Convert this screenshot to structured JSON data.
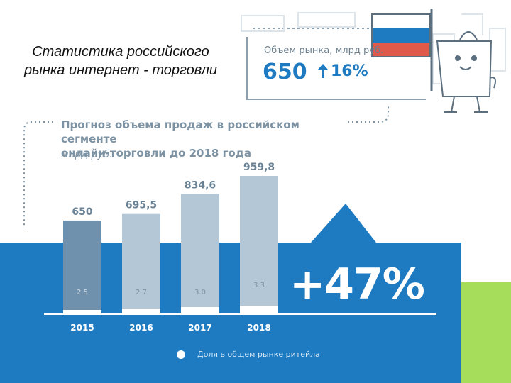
{
  "slide": {
    "title_line1": "Статистика российского",
    "title_line2": "рынка интернет - торговли"
  },
  "market_box": {
    "label": "Объем рынка, млрд руб.",
    "value": "650",
    "growth": "16%"
  },
  "chart_data": {
    "type": "bar",
    "title": "Прогноз объема продаж в российском сегменте онлайн-торговли до 2018 года",
    "title_line1": "Прогноз объема продаж в российском сегменте",
    "title_line2": "онлайн-торговли до 2018 года",
    "units": "млрд руб.",
    "categories": [
      "2015",
      "2016",
      "2017",
      "2018"
    ],
    "values": [
      650,
      695.5,
      834.6,
      959.8
    ],
    "value_labels": [
      "650",
      "695,5",
      "834,6",
      "959,8"
    ],
    "share_labels": [
      "2.5",
      "2.7",
      "3.0",
      "3.3"
    ],
    "ylim": [
      0,
      1000
    ],
    "growth_label": "+47%",
    "legend_text": "Доля в общем рынке ритейла"
  },
  "colors": {
    "blue_band": "#1e7bc2",
    "bar_dark": "#6f91ad",
    "bar_light": "#b3c7d6",
    "accent_green": "#a6dd5b",
    "text_gray": "#7d93a3"
  }
}
